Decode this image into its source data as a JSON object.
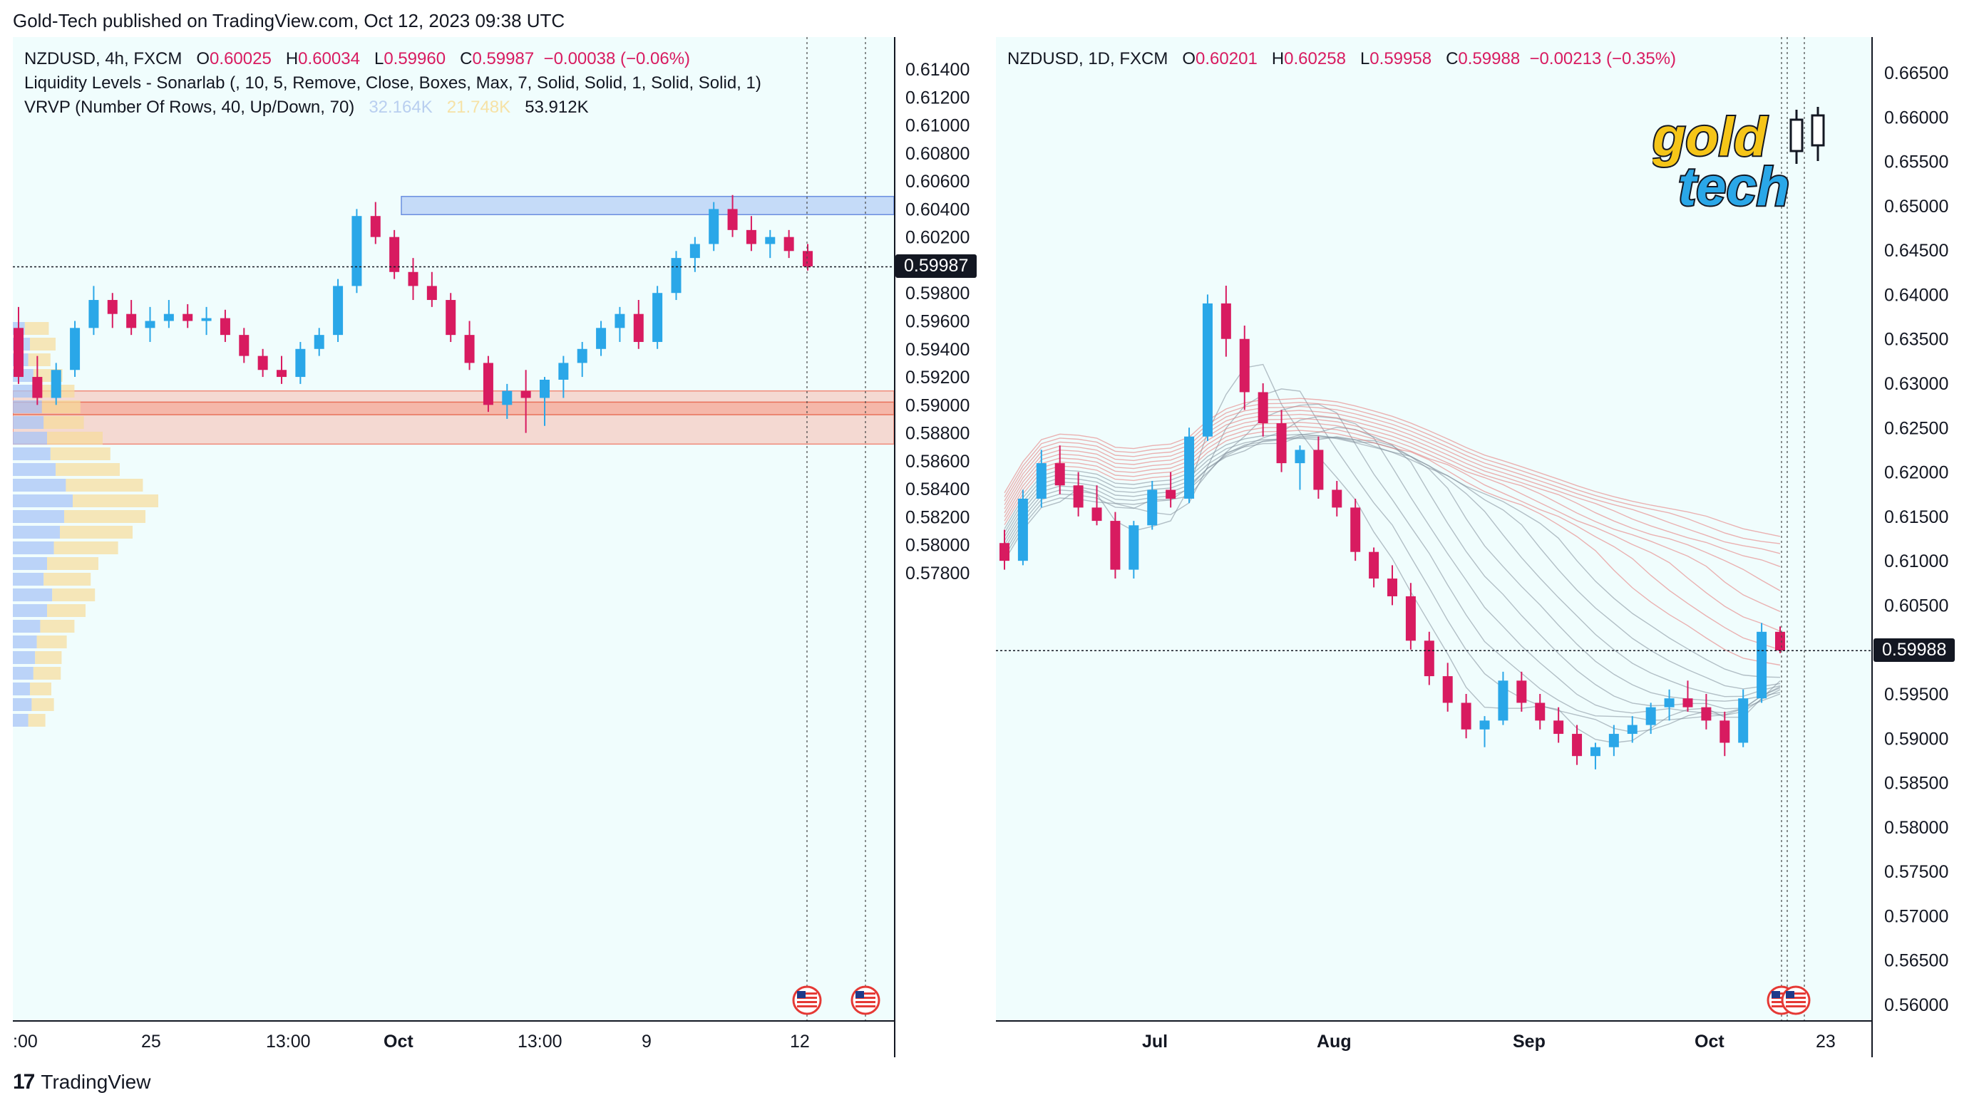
{
  "header": {
    "attribution": "Gold-Tech published on TradingView.com, Oct 12, 2023 09:38 UTC"
  },
  "footer": {
    "brand": "TradingView",
    "brand_icon": "tradingview-logo-icon"
  },
  "colors": {
    "up": "#2aa7e8",
    "down": "#d81b60",
    "pane_bg": "#f0fdfd",
    "supply_zone": "#a9c4f5",
    "demand_zone": "#f8bcae"
  },
  "left_chart": {
    "legend": {
      "symbol": "NZDUSD, 4h, FXCM",
      "o_label": "O",
      "o": "0.60025",
      "h_label": "H",
      "h": "0.60034",
      "l_label": "L",
      "l": "0.59960",
      "c_label": "C",
      "c": "0.59987",
      "change": "−0.00038 (−0.06%)",
      "indicator1": "Liquidity Levels - Sonarlab (, 10, 5, Remove, Close, Boxes, Max, 7, Solid, Solid, 1, Solid, Solid, 1)",
      "indicator2": "VRVP (Number Of Rows, 40, Up/Down, 70)",
      "vrvp_up": "32.164K",
      "vrvp_down": "21.748K",
      "vrvp_total": "53.912K"
    },
    "price_labels": [
      "0.61400",
      "0.61200",
      "0.61000",
      "0.60800",
      "0.60600",
      "0.60400",
      "0.60200",
      "0.59800",
      "0.59600",
      "0.59400",
      "0.59200",
      "0.59000",
      "0.58800",
      "0.58600",
      "0.58400",
      "0.58200",
      "0.58000",
      "0.57800"
    ],
    "last_price": "0.59987",
    "time_labels": [
      ":00",
      "25",
      "13:00",
      "Oct",
      "13:00",
      "9",
      "12"
    ]
  },
  "right_chart": {
    "legend": {
      "symbol": "NZDUSD, 1D, FXCM",
      "o_label": "O",
      "o": "0.60201",
      "h_label": "H",
      "h": "0.60258",
      "l_label": "L",
      "l": "0.59958",
      "c_label": "C",
      "c": "0.59988",
      "change": "−0.00213 (−0.35%)"
    },
    "price_labels": [
      "0.66500",
      "0.66000",
      "0.65500",
      "0.65000",
      "0.64500",
      "0.64000",
      "0.63500",
      "0.63000",
      "0.62500",
      "0.62000",
      "0.61500",
      "0.61000",
      "0.60500",
      "0.59500",
      "0.59000",
      "0.58500",
      "0.58000",
      "0.57500",
      "0.57000",
      "0.56500",
      "0.56000"
    ],
    "last_price": "0.59988",
    "time_labels": [
      "Jul",
      "Aug",
      "Sep",
      "Oct",
      "23"
    ],
    "logo": {
      "word1": "gold",
      "word2": "tech"
    }
  },
  "chart_data": [
    {
      "type": "candlestick",
      "title": "NZDUSD, 4h, FXCM",
      "ylim": [
        0.578,
        0.615
      ],
      "candles": [
        [
          0.5955,
          0.597,
          0.5915,
          0.592
        ],
        [
          0.592,
          0.5935,
          0.59,
          0.5905
        ],
        [
          0.5905,
          0.593,
          0.59,
          0.5925
        ],
        [
          0.5925,
          0.596,
          0.592,
          0.5955
        ],
        [
          0.5955,
          0.5985,
          0.595,
          0.5975
        ],
        [
          0.5975,
          0.598,
          0.5955,
          0.5965
        ],
        [
          0.5965,
          0.5975,
          0.595,
          0.5955
        ],
        [
          0.5955,
          0.597,
          0.5945,
          0.596
        ],
        [
          0.596,
          0.5975,
          0.5955,
          0.5965
        ],
        [
          0.5965,
          0.5972,
          0.5955,
          0.596
        ],
        [
          0.596,
          0.597,
          0.595,
          0.5962
        ],
        [
          0.5962,
          0.5968,
          0.5945,
          0.595
        ],
        [
          0.595,
          0.5955,
          0.593,
          0.5935
        ],
        [
          0.5935,
          0.594,
          0.592,
          0.5925
        ],
        [
          0.5925,
          0.5935,
          0.5915,
          0.592
        ],
        [
          0.592,
          0.5945,
          0.5915,
          0.594
        ],
        [
          0.594,
          0.5955,
          0.5935,
          0.595
        ],
        [
          0.595,
          0.599,
          0.5945,
          0.5985
        ],
        [
          0.5985,
          0.604,
          0.598,
          0.6035
        ],
        [
          0.6035,
          0.6045,
          0.6015,
          0.602
        ],
        [
          0.602,
          0.6025,
          0.599,
          0.5995
        ],
        [
          0.5995,
          0.6005,
          0.5975,
          0.5985
        ],
        [
          0.5985,
          0.5995,
          0.597,
          0.5975
        ],
        [
          0.5975,
          0.598,
          0.5945,
          0.595
        ],
        [
          0.595,
          0.596,
          0.5925,
          0.593
        ],
        [
          0.593,
          0.5935,
          0.5895,
          0.59
        ],
        [
          0.59,
          0.5915,
          0.589,
          0.591
        ],
        [
          0.591,
          0.5925,
          0.588,
          0.5905
        ],
        [
          0.5905,
          0.592,
          0.5885,
          0.5918
        ],
        [
          0.5918,
          0.5935,
          0.5905,
          0.593
        ],
        [
          0.593,
          0.5945,
          0.592,
          0.594
        ],
        [
          0.594,
          0.596,
          0.5935,
          0.5955
        ],
        [
          0.5955,
          0.597,
          0.5945,
          0.5965
        ],
        [
          0.5965,
          0.5975,
          0.594,
          0.5945
        ],
        [
          0.5945,
          0.5985,
          0.594,
          0.598
        ],
        [
          0.598,
          0.601,
          0.5975,
          0.6005
        ],
        [
          0.6005,
          0.602,
          0.5995,
          0.6015
        ],
        [
          0.6015,
          0.6045,
          0.601,
          0.604
        ],
        [
          0.604,
          0.605,
          0.602,
          0.6025
        ],
        [
          0.6025,
          0.6035,
          0.601,
          0.6015
        ],
        [
          0.6015,
          0.6025,
          0.6005,
          0.602
        ],
        [
          0.602,
          0.6025,
          0.6005,
          0.601
        ],
        [
          0.601,
          0.6015,
          0.5996,
          0.5999
        ]
      ],
      "zones": [
        {
          "name": "supply",
          "top": 0.6049,
          "bottom": 0.6036
        },
        {
          "name": "demand",
          "top": 0.591,
          "bottom": 0.5872
        },
        {
          "name": "demand-core",
          "top": 0.5902,
          "bottom": 0.5893
        }
      ]
    },
    {
      "type": "candlestick",
      "title": "NZDUSD, 1D, FXCM",
      "ylim": [
        0.558,
        0.668
      ],
      "candles": [
        [
          0.612,
          0.6135,
          0.609,
          0.61
        ],
        [
          0.61,
          0.618,
          0.6095,
          0.617
        ],
        [
          0.617,
          0.6225,
          0.616,
          0.621
        ],
        [
          0.621,
          0.623,
          0.6175,
          0.6185
        ],
        [
          0.6185,
          0.62,
          0.615,
          0.616
        ],
        [
          0.616,
          0.6185,
          0.614,
          0.6145
        ],
        [
          0.6145,
          0.6155,
          0.608,
          0.609
        ],
        [
          0.609,
          0.6145,
          0.608,
          0.614
        ],
        [
          0.614,
          0.619,
          0.6135,
          0.618
        ],
        [
          0.618,
          0.62,
          0.616,
          0.617
        ],
        [
          0.617,
          0.625,
          0.6165,
          0.624
        ],
        [
          0.624,
          0.64,
          0.6235,
          0.639
        ],
        [
          0.639,
          0.641,
          0.633,
          0.635
        ],
        [
          0.635,
          0.6365,
          0.627,
          0.629
        ],
        [
          0.629,
          0.63,
          0.624,
          0.6255
        ],
        [
          0.6255,
          0.627,
          0.62,
          0.621
        ],
        [
          0.621,
          0.623,
          0.618,
          0.6225
        ],
        [
          0.6225,
          0.624,
          0.617,
          0.618
        ],
        [
          0.618,
          0.619,
          0.615,
          0.616
        ],
        [
          0.616,
          0.617,
          0.61,
          0.611
        ],
        [
          0.611,
          0.6115,
          0.607,
          0.608
        ],
        [
          0.608,
          0.6095,
          0.605,
          0.606
        ],
        [
          0.606,
          0.6075,
          0.6,
          0.601
        ],
        [
          0.601,
          0.602,
          0.596,
          0.597
        ],
        [
          0.597,
          0.5985,
          0.593,
          0.594
        ],
        [
          0.594,
          0.595,
          0.59,
          0.591
        ],
        [
          0.591,
          0.5925,
          0.589,
          0.592
        ],
        [
          0.592,
          0.5975,
          0.5915,
          0.5965
        ],
        [
          0.5965,
          0.5975,
          0.593,
          0.594
        ],
        [
          0.594,
          0.595,
          0.591,
          0.592
        ],
        [
          0.592,
          0.5935,
          0.5895,
          0.5905
        ],
        [
          0.5905,
          0.5915,
          0.587,
          0.588
        ],
        [
          0.588,
          0.5895,
          0.5865,
          0.589
        ],
        [
          0.589,
          0.5915,
          0.588,
          0.5905
        ],
        [
          0.5905,
          0.5925,
          0.5895,
          0.5915
        ],
        [
          0.5915,
          0.594,
          0.5905,
          0.5935
        ],
        [
          0.5935,
          0.5955,
          0.592,
          0.5945
        ],
        [
          0.5945,
          0.5965,
          0.593,
          0.5935
        ],
        [
          0.5935,
          0.595,
          0.591,
          0.592
        ],
        [
          0.592,
          0.593,
          0.588,
          0.5895
        ],
        [
          0.5895,
          0.5955,
          0.589,
          0.5945
        ],
        [
          0.5945,
          0.603,
          0.594,
          0.602
        ],
        [
          0.602,
          0.6026,
          0.5996,
          0.5999
        ]
      ],
      "ribbon": "moving-average ribbon (red/grey bands)"
    }
  ]
}
